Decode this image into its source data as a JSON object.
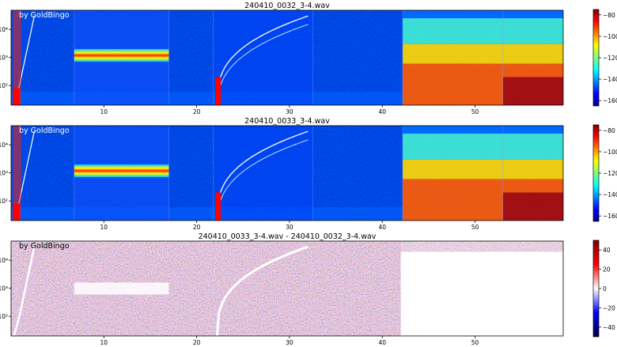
{
  "watermark": "by GoldBingo",
  "chart_data": [
    {
      "type": "heatmap",
      "title": "240410_0032_3-4.wav",
      "xlim": [
        0,
        59.5
      ],
      "ylim": [
        20,
        48000
      ],
      "yscale": "log",
      "x_ticks": [
        "10",
        "20",
        "30",
        "40",
        "50"
      ],
      "x_tick_values": [
        10,
        20,
        30,
        40,
        50
      ],
      "y_ticks": [
        "10²",
        "10³",
        "10⁴"
      ],
      "y_tick_values": [
        100,
        1000,
        10000
      ],
      "colorbar": {
        "colormap": "jet",
        "range": [
          -165,
          -75
        ],
        "ticks": [
          "−80",
          "−100",
          "−120",
          "−140",
          "−160"
        ],
        "tick_values": [
          -80,
          -100,
          -120,
          -140,
          -160
        ]
      },
      "colors": {
        "low": "#00008f",
        "mid": "#7dff7a",
        "high": "#800000"
      }
    },
    {
      "type": "heatmap",
      "title": "240410_0033_3-4.wav",
      "xlim": [
        0,
        59.5
      ],
      "ylim": [
        20,
        48000
      ],
      "yscale": "log",
      "x_ticks": [
        "10",
        "20",
        "30",
        "40",
        "50"
      ],
      "x_tick_values": [
        10,
        20,
        30,
        40,
        50
      ],
      "y_ticks": [
        "10²",
        "10³",
        "10⁴"
      ],
      "y_tick_values": [
        100,
        1000,
        10000
      ],
      "colorbar": {
        "colormap": "jet",
        "range": [
          -165,
          -75
        ],
        "ticks": [
          "−80",
          "−100",
          "−120",
          "−140",
          "−160"
        ],
        "tick_values": [
          -80,
          -100,
          -120,
          -140,
          -160
        ]
      },
      "colors": {
        "low": "#00008f",
        "mid": "#7dff7a",
        "high": "#800000"
      }
    },
    {
      "type": "heatmap",
      "title": "240410_0033_3-4.wav - 240410_0032_3-4.wav",
      "xlim": [
        0,
        59.5
      ],
      "ylim": [
        20,
        48000
      ],
      "yscale": "log",
      "x_ticks": [
        "10",
        "20",
        "30",
        "40",
        "50"
      ],
      "x_tick_values": [
        10,
        20,
        30,
        40,
        50
      ],
      "y_ticks": [
        "10²",
        "10³",
        "10⁴"
      ],
      "y_tick_values": [
        100,
        1000,
        10000
      ],
      "colorbar": {
        "colormap": "seismic",
        "range": [
          -50,
          50
        ],
        "ticks": [
          "40",
          "20",
          "0",
          "−20",
          "−40"
        ],
        "tick_values": [
          40,
          20,
          0,
          -20,
          -40
        ]
      },
      "colors": {
        "low": "#00004c",
        "mid": "#ffffff",
        "high": "#800000"
      }
    }
  ]
}
